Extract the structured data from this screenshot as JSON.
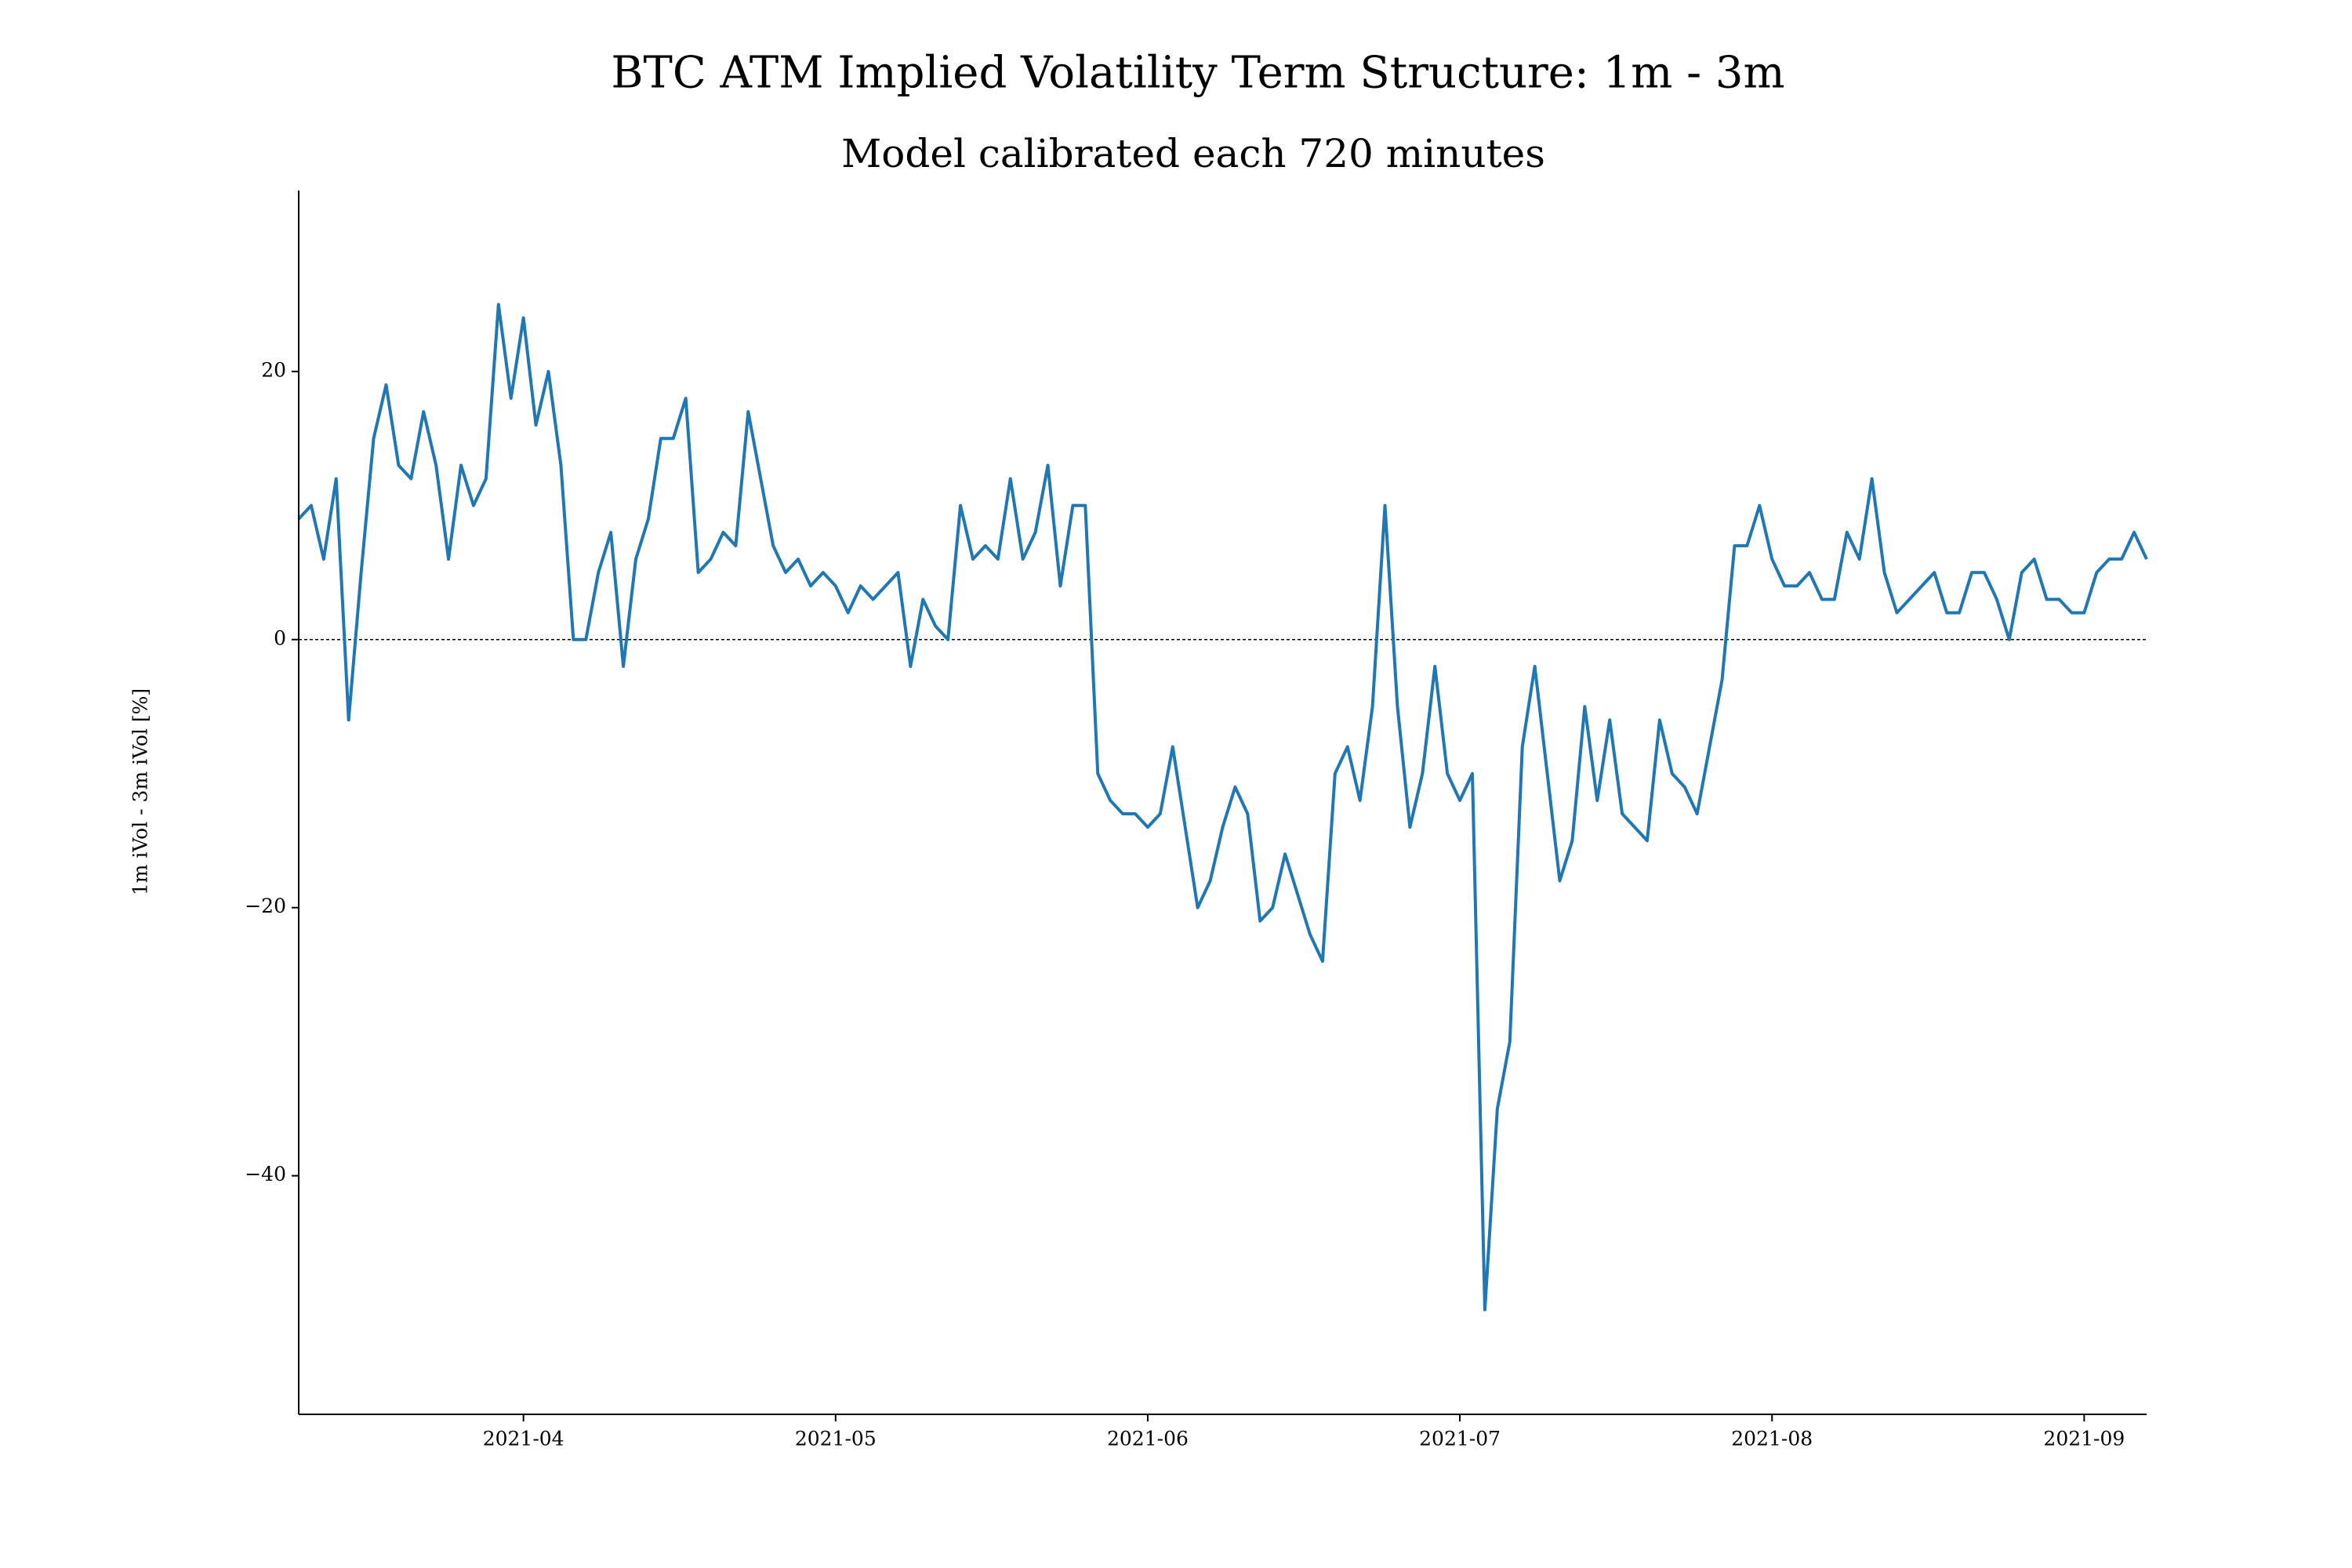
{
  "chart_data": {
    "type": "line",
    "title": "BTC ATM Implied Volatility Term Structure: 1m - 3m",
    "subtitle": "Model calibrated each 720 minutes",
    "y_label": "1m iVol - 3m iVol [%]",
    "color": "#1f77b4",
    "hline": 0,
    "xlim": [
      3.28,
      9.2
    ],
    "xticks": [
      {
        "value": 4,
        "label": "2021-04"
      },
      {
        "value": 5,
        "label": "2021-05"
      },
      {
        "value": 6,
        "label": "2021-06"
      },
      {
        "value": 7,
        "label": "2021-07"
      },
      {
        "value": 8,
        "label": "2021-08"
      },
      {
        "value": 9,
        "label": "2021-09"
      }
    ],
    "ylim": [
      -57.8,
      33.5
    ],
    "yticks": [
      {
        "value": -40,
        "label": "−40"
      },
      {
        "value": -20,
        "label": "−20"
      },
      0,
      20
    ],
    "x": [
      3.28,
      3.32,
      3.36,
      3.4,
      3.44,
      3.48,
      3.52,
      3.56,
      3.6,
      3.64,
      3.68,
      3.72,
      3.76,
      3.8,
      3.84,
      3.88,
      3.92,
      3.96,
      4,
      4.04,
      4.08,
      4.12,
      4.16,
      4.2,
      4.24,
      4.28,
      4.32,
      4.36,
      4.4,
      4.44,
      4.48,
      4.52,
      4.56,
      4.6,
      4.64,
      4.68,
      4.72,
      4.76,
      4.8,
      4.84,
      4.88,
      4.92,
      4.96,
      5,
      5.04,
      5.08,
      5.12,
      5.16,
      5.2,
      5.24,
      5.28,
      5.32,
      5.36,
      5.4,
      5.44,
      5.48,
      5.52,
      5.56,
      5.6,
      5.64,
      5.68,
      5.72,
      5.76,
      5.8,
      5.84,
      5.88,
      5.92,
      5.96,
      6,
      6.04,
      6.08,
      6.12,
      6.16,
      6.2,
      6.24,
      6.28,
      6.32,
      6.36,
      6.4,
      6.44,
      6.48,
      6.52,
      6.56,
      6.6,
      6.64,
      6.68,
      6.72,
      6.76,
      6.8,
      6.84,
      6.88,
      6.92,
      6.96,
      7,
      7.04,
      7.08,
      7.12,
      7.16,
      7.2,
      7.24,
      7.28,
      7.32,
      7.36,
      7.4,
      7.44,
      7.48,
      7.52,
      7.56,
      7.6,
      7.64,
      7.68,
      7.72,
      7.76,
      7.8,
      7.84,
      7.88,
      7.92,
      7.96,
      8,
      8.04,
      8.08,
      8.12,
      8.16,
      8.2,
      8.24,
      8.28,
      8.32,
      8.36,
      8.4,
      8.44,
      8.48,
      8.52,
      8.56,
      8.6,
      8.64,
      8.68,
      8.72,
      8.76,
      8.8,
      8.84,
      8.88,
      8.92,
      8.96,
      9,
      9.04,
      9.08,
      9.12,
      9.16,
      9.2
    ],
    "values": [
      9,
      10,
      6,
      12,
      -6,
      5,
      15,
      19,
      13,
      12,
      17,
      13,
      6,
      13,
      10,
      12,
      25,
      18,
      24,
      16,
      20,
      13,
      0,
      0,
      5,
      8,
      -2,
      6,
      9,
      15,
      15,
      18,
      5,
      6,
      8,
      7,
      17,
      12,
      7,
      5,
      6,
      4,
      5,
      4,
      2,
      4,
      3,
      4,
      5,
      -2,
      3,
      1,
      0,
      10,
      6,
      7,
      6,
      12,
      6,
      8,
      13,
      4,
      10,
      10,
      -10,
      -12,
      -13,
      -13,
      -14,
      -13,
      -8,
      -14,
      -20,
      -18,
      -14,
      -11,
      -13,
      -21,
      -20,
      -16,
      -19,
      -22,
      -24,
      -10,
      -8,
      -12,
      -5,
      10,
      -5,
      -14,
      -10,
      -2,
      -10,
      -12,
      -10,
      -50,
      -35,
      -30,
      -8,
      -2,
      -10,
      -18,
      -15,
      -5,
      -12,
      -6,
      -13,
      -14,
      -15,
      -6,
      -10,
      -11,
      -13,
      -8,
      -3,
      7,
      7,
      10,
      6,
      4,
      4,
      5,
      3,
      3,
      8,
      6,
      12,
      5,
      2,
      3,
      4,
      5,
      2,
      2,
      5,
      5,
      3,
      0,
      5,
      6,
      3,
      3,
      2,
      2,
      5,
      6,
      6,
      8,
      6
    ]
  }
}
